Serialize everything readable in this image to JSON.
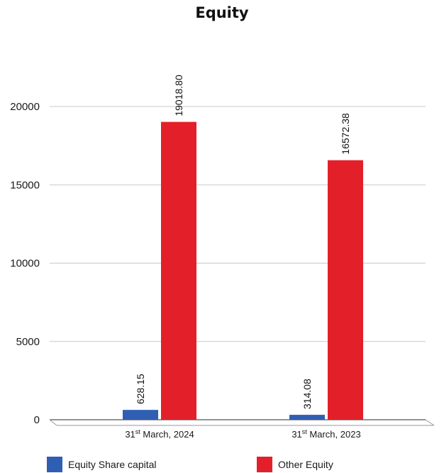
{
  "chart_data": {
    "type": "bar",
    "title": "Equity",
    "categories": [
      "31st March, 2024",
      "31st March, 2023"
    ],
    "categories_parts": [
      {
        "pre": "31",
        "sup": "st",
        "post": " March, 2024"
      },
      {
        "pre": "31",
        "sup": "st",
        "post": " March, 2023"
      }
    ],
    "series": [
      {
        "name": "Equity Share capital",
        "values": [
          628.15,
          314.08
        ],
        "labels": [
          "628.15",
          "314.08"
        ],
        "color": "#2f5fb3"
      },
      {
        "name": "Other Equity",
        "values": [
          19018.8,
          16572.38
        ],
        "labels": [
          "19018.80",
          "16572.38"
        ],
        "color": "#e3202a"
      }
    ],
    "ylim": [
      0,
      24000
    ],
    "yticks": [
      0,
      5000,
      10000,
      15000,
      20000
    ],
    "xlabel": "",
    "ylabel": "",
    "grid": true,
    "legend_position": "bottom"
  }
}
